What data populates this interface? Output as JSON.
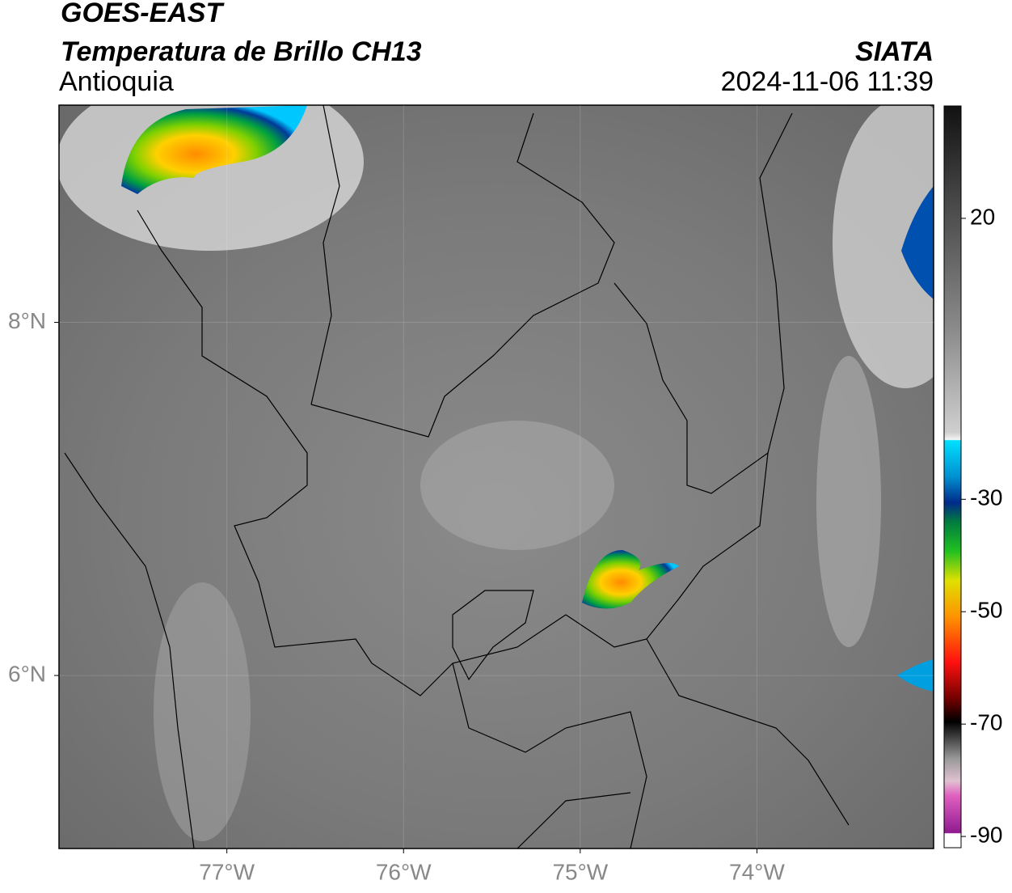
{
  "header": {
    "satellite": "GOES-EAST",
    "title": "Temperatura de Brillo CH13",
    "region": "Antioquia",
    "source": "SIATA",
    "datetime": "2024-11-06 11:39"
  },
  "map": {
    "xlim": [
      -77.95,
      -73.0
    ],
    "ylim": [
      5.02,
      9.23
    ],
    "grid": true,
    "xticks": [
      {
        "value": -77,
        "label": "77°W"
      },
      {
        "value": -76,
        "label": "76°W"
      },
      {
        "value": -75,
        "label": "75°W"
      },
      {
        "value": -74,
        "label": "74°W"
      }
    ],
    "yticks": [
      {
        "value": 8,
        "label": "8°N"
      },
      {
        "value": 6,
        "label": "6°N"
      }
    ]
  },
  "colorbar": {
    "clim": [
      -92,
      40
    ],
    "ticks": [
      20,
      -30,
      -50,
      -70,
      -90
    ]
  }
}
